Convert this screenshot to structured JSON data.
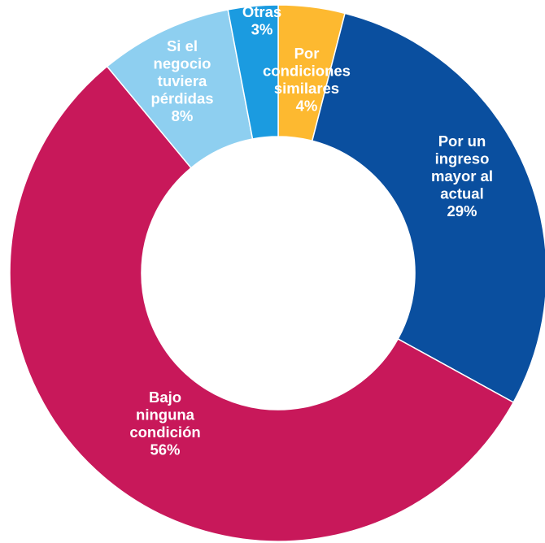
{
  "chart_data": {
    "type": "pie",
    "variant": "donut",
    "start": "top",
    "direction": "clockwise",
    "legend": "none",
    "slices": [
      {
        "label_lines": [
          "Por",
          "condiciones",
          "similares"
        ],
        "value": 4,
        "value_label": "4%",
        "color": "#FDB930"
      },
      {
        "label_lines": [
          "Por un",
          "ingreso",
          "mayor al",
          "actual"
        ],
        "value": 29,
        "value_label": "29%",
        "color": "#0A4F9F"
      },
      {
        "label_lines": [
          "Bajo",
          "ninguna",
          "condición"
        ],
        "value": 56,
        "value_label": "56%",
        "color": "#C8185A"
      },
      {
        "label_lines": [
          "Si el",
          "negocio",
          "tuviera",
          "pérdidas"
        ],
        "value": 8,
        "value_label": "8%",
        "color": "#8ECFF0"
      },
      {
        "label_lines": [
          "Otras"
        ],
        "value": 3,
        "value_label": "3%",
        "color": "#1B9BE0"
      }
    ]
  }
}
